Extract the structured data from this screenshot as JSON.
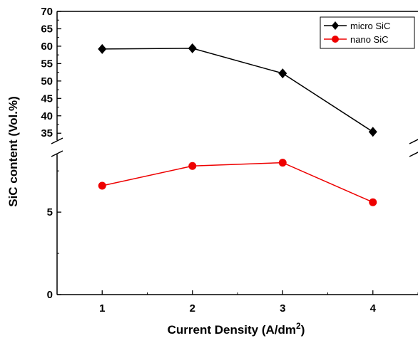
{
  "chart_data": {
    "type": "line",
    "title": "",
    "xlabel_prefix": "Current Density (A/dm",
    "xlabel_sup": "2",
    "xlabel_suffix": ")",
    "ylabel": "SiC content (Vol.%)",
    "x": [
      1,
      2,
      3,
      4
    ],
    "x_ticks": [
      "1",
      "2",
      "3",
      "4"
    ],
    "xlim": [
      0.5,
      4.5
    ],
    "y_ticks_upper": [
      "35",
      "40",
      "45",
      "50",
      "55",
      "60",
      "65",
      "70"
    ],
    "y_ticks_lower": [
      "0",
      "5"
    ],
    "ylim_upper": [
      33,
      70
    ],
    "ylim_lower": [
      0,
      8.5
    ],
    "axis_break": true,
    "legend_position": "top-right",
    "series": [
      {
        "name": "micro SiC",
        "color": "#000000",
        "marker": "diamond",
        "values": [
          59.2,
          59.4,
          52.2,
          35.4
        ]
      },
      {
        "name": "nano SiC",
        "color": "#ee0000",
        "marker": "circle",
        "values": [
          6.6,
          7.8,
          8.0,
          5.6
        ]
      }
    ]
  }
}
